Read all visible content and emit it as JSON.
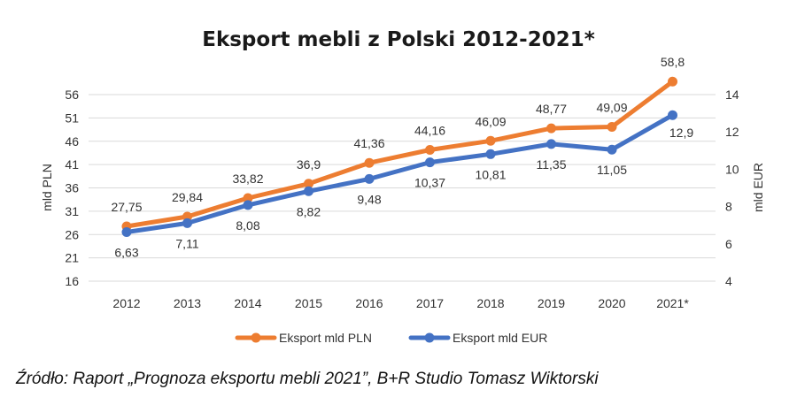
{
  "chart_data": {
    "type": "line",
    "title": "Eksport mebli z Polski 2012-2021*",
    "categories": [
      "2012",
      "2013",
      "2014",
      "2015",
      "2016",
      "2017",
      "2018",
      "2019",
      "2020",
      "2021*"
    ],
    "series": [
      {
        "name": "Eksport mld PLN",
        "axis": "left",
        "color": "#ED7D31",
        "values": [
          27.75,
          29.84,
          33.82,
          36.9,
          41.36,
          44.16,
          46.09,
          48.77,
          49.09,
          58.8
        ],
        "labels": [
          "27,75",
          "29,84",
          "33,82",
          "36,9",
          "41,36",
          "44,16",
          "46,09",
          "48,77",
          "49,09",
          "58,8"
        ]
      },
      {
        "name": "Eksport mld EUR",
        "axis": "right",
        "color": "#4472C4",
        "values": [
          6.63,
          7.11,
          8.08,
          8.82,
          9.48,
          10.37,
          10.81,
          11.35,
          11.05,
          12.9
        ],
        "labels": [
          "6,63",
          "7,11",
          "8,08",
          "8,82",
          "9,48",
          "10,37",
          "10,81",
          "11,35",
          "11,05",
          "12,9"
        ]
      }
    ],
    "y_left": {
      "label": "mld PLN",
      "range": [
        16,
        56
      ],
      "ticks": [
        "16",
        "21",
        "26",
        "31",
        "36",
        "41",
        "46",
        "51",
        "56"
      ]
    },
    "y_right": {
      "label": "mld EUR",
      "range": [
        4,
        14
      ],
      "ticks": [
        "4",
        "6",
        "8",
        "10",
        "12",
        "14"
      ]
    },
    "grid": true,
    "legend_position": "bottom"
  },
  "source_note": "Źródło: Raport „Prognoza eksportu mebli 2021”, B+R Studio Tomasz Wiktorski",
  "colors": {
    "grid": "#D9D9D9",
    "text": "#333333"
  }
}
